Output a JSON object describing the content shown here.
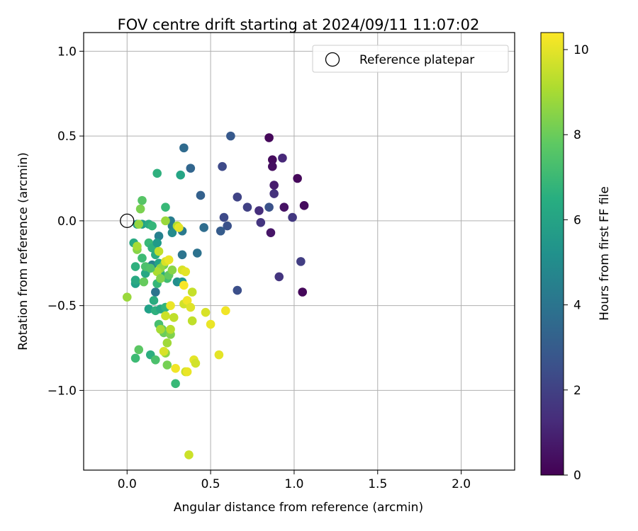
{
  "chart_data": {
    "type": "scatter",
    "title": "FOV centre drift starting at 2024/09/11 11:07:02",
    "xlabel": "Angular distance from reference (arcmin)",
    "ylabel": "Rotation from reference (arcmin)",
    "xlim": [
      -0.26,
      2.32
    ],
    "ylim": [
      -1.47,
      1.11
    ],
    "xticks": [
      0.0,
      0.5,
      1.0,
      1.5,
      2.0
    ],
    "xtick_labels": [
      "0.0",
      "0.5",
      "1.0",
      "1.5",
      "2.0"
    ],
    "yticks": [
      -1.0,
      -0.5,
      0.0,
      0.5,
      1.0
    ],
    "ytick_labels": [
      "−1.0",
      "−0.5",
      "0.0",
      "0.5",
      "1.0"
    ],
    "grid": true,
    "legend": {
      "position": "top-right",
      "entries": [
        "Reference platepar"
      ]
    },
    "reference_point": {
      "x": 0.0,
      "y": 0.0,
      "label": "Reference platepar"
    },
    "colorbar": {
      "label": "Hours from first FF file",
      "colormap": "viridis",
      "range": [
        0,
        10.4
      ],
      "ticks": [
        0,
        2,
        4,
        6,
        8,
        10
      ],
      "tick_labels": [
        "0",
        "2",
        "4",
        "6",
        "8",
        "10"
      ]
    },
    "points": [
      {
        "x": 0.85,
        "y": 0.49,
        "c": 0.2
      },
      {
        "x": 0.87,
        "y": 0.36,
        "c": 0.3
      },
      {
        "x": 0.87,
        "y": 0.32,
        "c": 0.4
      },
      {
        "x": 1.02,
        "y": 0.25,
        "c": 0.2
      },
      {
        "x": 1.06,
        "y": 0.09,
        "c": 0.3
      },
      {
        "x": 0.94,
        "y": 0.08,
        "c": 0.5
      },
      {
        "x": 0.88,
        "y": 0.21,
        "c": 0.8
      },
      {
        "x": 0.86,
        "y": -0.07,
        "c": 0.6
      },
      {
        "x": 1.05,
        "y": -0.42,
        "c": 0.2
      },
      {
        "x": 0.93,
        "y": 0.37,
        "c": 1.2
      },
      {
        "x": 0.88,
        "y": 0.16,
        "c": 1.5
      },
      {
        "x": 0.79,
        "y": 0.06,
        "c": 1.4
      },
      {
        "x": 0.8,
        "y": -0.01,
        "c": 1.6
      },
      {
        "x": 0.99,
        "y": 0.02,
        "c": 1.7
      },
      {
        "x": 1.04,
        "y": -0.24,
        "c": 1.9
      },
      {
        "x": 0.91,
        "y": -0.33,
        "c": 1.6
      },
      {
        "x": 0.72,
        "y": 0.08,
        "c": 2.0
      },
      {
        "x": 0.85,
        "y": 0.08,
        "c": 2.6
      },
      {
        "x": 0.66,
        "y": 0.14,
        "c": 2.1
      },
      {
        "x": 0.57,
        "y": 0.32,
        "c": 2.3
      },
      {
        "x": 0.62,
        "y": 0.5,
        "c": 2.9
      },
      {
        "x": 0.58,
        "y": 0.02,
        "c": 2.3
      },
      {
        "x": 0.6,
        "y": -0.03,
        "c": 2.6
      },
      {
        "x": 0.66,
        "y": -0.41,
        "c": 2.5
      },
      {
        "x": 0.56,
        "y": -0.06,
        "c": 3.0
      },
      {
        "x": 0.44,
        "y": 0.15,
        "c": 3.2
      },
      {
        "x": 0.46,
        "y": -0.04,
        "c": 3.7
      },
      {
        "x": 0.38,
        "y": 0.31,
        "c": 3.4
      },
      {
        "x": 0.34,
        "y": 0.43,
        "c": 3.6
      },
      {
        "x": 0.42,
        "y": -0.19,
        "c": 3.9
      },
      {
        "x": 0.33,
        "y": -0.2,
        "c": 4.0
      },
      {
        "x": 0.33,
        "y": -0.06,
        "c": 4.2
      },
      {
        "x": 0.27,
        "y": -0.03,
        "c": 4.5
      },
      {
        "x": 0.27,
        "y": -0.07,
        "c": 5.0
      },
      {
        "x": 0.26,
        "y": 0.0,
        "c": 4.4
      },
      {
        "x": 0.17,
        "y": -0.42,
        "c": 4.0
      },
      {
        "x": 0.19,
        "y": -0.09,
        "c": 4.6
      },
      {
        "x": 0.15,
        "y": -0.26,
        "c": 4.6
      },
      {
        "x": 0.3,
        "y": -0.36,
        "c": 5.1
      },
      {
        "x": 0.33,
        "y": -0.36,
        "c": 5.5
      },
      {
        "x": 0.32,
        "y": 0.27,
        "c": 6.1
      },
      {
        "x": 0.18,
        "y": 0.28,
        "c": 6.6
      },
      {
        "x": 0.23,
        "y": 0.08,
        "c": 7.0
      },
      {
        "x": 0.04,
        "y": -0.13,
        "c": 6.3
      },
      {
        "x": 0.06,
        "y": -0.02,
        "c": 5.6
      },
      {
        "x": 0.09,
        "y": -0.02,
        "c": 5.8
      },
      {
        "x": 0.13,
        "y": -0.02,
        "c": 6.4
      },
      {
        "x": 0.15,
        "y": -0.03,
        "c": 6.9
      },
      {
        "x": 0.11,
        "y": -0.31,
        "c": 6.2
      },
      {
        "x": 0.05,
        "y": -0.27,
        "c": 6.6
      },
      {
        "x": 0.05,
        "y": -0.37,
        "c": 5.9
      },
      {
        "x": 0.05,
        "y": -0.35,
        "c": 6.3
      },
      {
        "x": 0.09,
        "y": -0.22,
        "c": 7.1
      },
      {
        "x": 0.09,
        "y": 0.12,
        "c": 7.6
      },
      {
        "x": 0.08,
        "y": 0.07,
        "c": 8.3
      },
      {
        "x": 0.07,
        "y": -0.02,
        "c": 8.7
      },
      {
        "x": 0.11,
        "y": -0.27,
        "c": 7.4
      },
      {
        "x": 0.13,
        "y": -0.13,
        "c": 7.0
      },
      {
        "x": 0.15,
        "y": -0.16,
        "c": 6.6
      },
      {
        "x": 0.18,
        "y": -0.13,
        "c": 5.6
      },
      {
        "x": 0.17,
        "y": -0.2,
        "c": 6.4
      },
      {
        "x": 0.19,
        "y": -0.25,
        "c": 6.0
      },
      {
        "x": 0.2,
        "y": -0.31,
        "c": 6.6
      },
      {
        "x": 0.18,
        "y": -0.37,
        "c": 6.9
      },
      {
        "x": 0.16,
        "y": -0.47,
        "c": 6.4
      },
      {
        "x": 0.13,
        "y": -0.52,
        "c": 5.9
      },
      {
        "x": 0.17,
        "y": -0.53,
        "c": 6.6
      },
      {
        "x": 0.2,
        "y": -0.52,
        "c": 6.2
      },
      {
        "x": 0.23,
        "y": -0.51,
        "c": 6.8
      },
      {
        "x": 0.19,
        "y": -0.61,
        "c": 7.3
      },
      {
        "x": 0.21,
        "y": -0.64,
        "c": 7.7
      },
      {
        "x": 0.24,
        "y": -0.34,
        "c": 7.2
      },
      {
        "x": 0.25,
        "y": -0.32,
        "c": 7.8
      },
      {
        "x": 0.27,
        "y": -0.29,
        "c": 8.5
      },
      {
        "x": 0.22,
        "y": -0.26,
        "c": 8.1
      },
      {
        "x": 0.2,
        "y": -0.28,
        "c": 8.7
      },
      {
        "x": 0.18,
        "y": -0.3,
        "c": 9.1
      },
      {
        "x": 0.19,
        "y": -0.18,
        "c": 9.4
      },
      {
        "x": 0.23,
        "y": -0.24,
        "c": 9.8
      },
      {
        "x": 0.25,
        "y": -0.23,
        "c": 10.1
      },
      {
        "x": 0.3,
        "y": -0.03,
        "c": 9.2
      },
      {
        "x": 0.23,
        "y": 0.0,
        "c": 8.8
      },
      {
        "x": 0.1,
        "y": -0.36,
        "c": 7.9
      },
      {
        "x": 0.06,
        "y": -0.17,
        "c": 8.5
      },
      {
        "x": 0.06,
        "y": -0.15,
        "c": 9.0
      },
      {
        "x": 0.0,
        "y": -0.45,
        "c": 8.8
      },
      {
        "x": 0.14,
        "y": -0.79,
        "c": 6.5
      },
      {
        "x": 0.05,
        "y": -0.81,
        "c": 7.1
      },
      {
        "x": 0.07,
        "y": -0.76,
        "c": 7.7
      },
      {
        "x": 0.17,
        "y": -0.82,
        "c": 7.4
      },
      {
        "x": 0.24,
        "y": -0.85,
        "c": 8.2
      },
      {
        "x": 0.23,
        "y": -0.78,
        "c": 8.6
      },
      {
        "x": 0.29,
        "y": -0.96,
        "c": 7.0
      },
      {
        "x": 0.22,
        "y": -0.66,
        "c": 8.0
      },
      {
        "x": 0.24,
        "y": -0.72,
        "c": 8.9
      },
      {
        "x": 0.26,
        "y": -0.67,
        "c": 8.4
      },
      {
        "x": 0.2,
        "y": -0.64,
        "c": 9.0
      },
      {
        "x": 0.26,
        "y": -0.64,
        "c": 9.3
      },
      {
        "x": 0.22,
        "y": -0.77,
        "c": 9.8
      },
      {
        "x": 0.28,
        "y": -0.57,
        "c": 9.4
      },
      {
        "x": 0.23,
        "y": -0.56,
        "c": 9.6
      },
      {
        "x": 0.26,
        "y": -0.5,
        "c": 10.1
      },
      {
        "x": 0.34,
        "y": -0.49,
        "c": 9.7
      },
      {
        "x": 0.36,
        "y": -0.47,
        "c": 10.2
      },
      {
        "x": 0.38,
        "y": -0.51,
        "c": 9.9
      },
      {
        "x": 0.33,
        "y": -0.29,
        "c": 9.8
      },
      {
        "x": 0.35,
        "y": -0.3,
        "c": 10.0
      },
      {
        "x": 0.39,
        "y": -0.42,
        "c": 9.5
      },
      {
        "x": 0.34,
        "y": -0.38,
        "c": 10.3
      },
      {
        "x": 0.29,
        "y": -0.87,
        "c": 10.2
      },
      {
        "x": 0.35,
        "y": -0.89,
        "c": 9.6
      },
      {
        "x": 0.36,
        "y": -0.89,
        "c": 10.1
      },
      {
        "x": 0.4,
        "y": -0.82,
        "c": 10.0
      },
      {
        "x": 0.41,
        "y": -0.84,
        "c": 9.7
      },
      {
        "x": 0.39,
        "y": -0.59,
        "c": 9.4
      },
      {
        "x": 0.47,
        "y": -0.54,
        "c": 9.8
      },
      {
        "x": 0.5,
        "y": -0.61,
        "c": 10.1
      },
      {
        "x": 0.55,
        "y": -0.79,
        "c": 10.0
      },
      {
        "x": 0.59,
        "y": -0.53,
        "c": 10.2
      },
      {
        "x": 0.37,
        "y": -1.38,
        "c": 9.6
      },
      {
        "x": 0.31,
        "y": -0.04,
        "c": 10.0
      },
      {
        "x": 0.2,
        "y": -0.34,
        "c": 8.4
      },
      {
        "x": 0.14,
        "y": -0.28,
        "c": 7.5
      }
    ]
  }
}
